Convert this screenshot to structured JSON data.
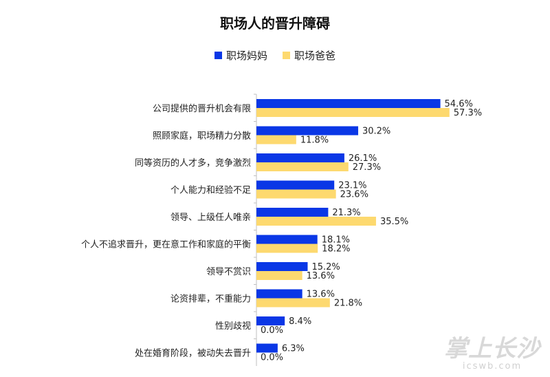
{
  "chart_data": {
    "type": "bar",
    "orientation": "horizontal",
    "title": "职场人的晋升障碍",
    "categories": [
      "公司提供的晋升机会有限",
      "照顾家庭，职场精力分散",
      "同等资历的人才多，竞争激烈",
      "个人能力和经验不足",
      "领导、上级任人唯亲",
      "个人不追求晋升，更在意工作和家庭的平衡",
      "领导不赏识",
      "论资排辈，不重能力",
      "性别歧视",
      "处在婚育阶段，被动失去晋升"
    ],
    "series": [
      {
        "name": "职场妈妈",
        "color": "#0a37e6",
        "values": [
          54.6,
          30.2,
          26.1,
          23.1,
          21.3,
          18.1,
          15.2,
          13.6,
          8.4,
          6.3
        ],
        "labels": [
          "54.6%",
          "30.2%",
          "26.1%",
          "23.1%",
          "21.3%",
          "18.1%",
          "15.2%",
          "13.6%",
          "8.4%",
          "6.3%"
        ]
      },
      {
        "name": "职场爸爸",
        "color": "#fdd96f",
        "values": [
          57.3,
          11.8,
          27.3,
          23.6,
          35.5,
          18.2,
          13.6,
          21.8,
          0.0,
          0.0
        ],
        "labels": [
          "57.3%",
          "11.8%",
          "27.3%",
          "23.6%",
          "35.5%",
          "18.2%",
          "13.6%",
          "21.8%",
          "0.0%",
          "0.0%"
        ]
      }
    ],
    "xlim": [
      0,
      60
    ],
    "grid": false,
    "legend": "top-center",
    "xlabel": "",
    "ylabel": ""
  },
  "watermark": {
    "name": "掌上长沙",
    "domain": "icswb.com"
  }
}
